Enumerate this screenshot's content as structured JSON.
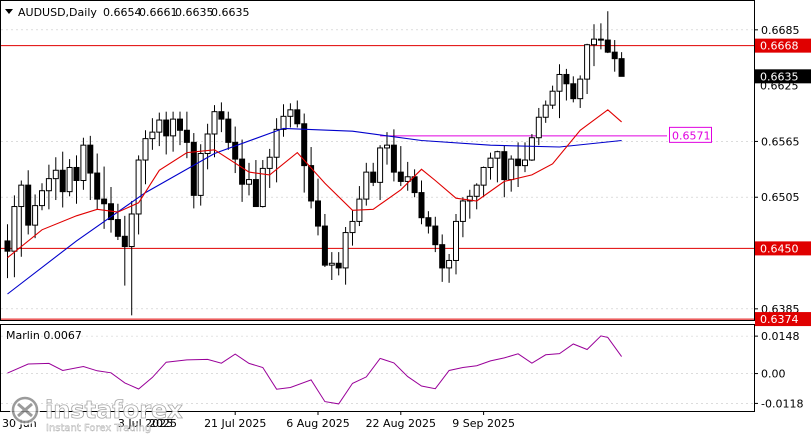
{
  "header": {
    "symbol_label": "AUDUSD,Daily",
    "ohlc": [
      "0.6654",
      "0.6661",
      "0.6635",
      "0.6635"
    ],
    "dropdown_icon": "triangle-down-icon"
  },
  "colors": {
    "bull": "#000000",
    "bear": "#000000",
    "level": "#e00000",
    "ma_fast": "#e00000",
    "ma_slow": "#0000cc",
    "marlin": "#990099",
    "target_line": "#e000e0",
    "grid": "#c8c8c8",
    "bid_tag_bg": "#000000"
  },
  "chart_data": [
    {
      "type": "candlestick",
      "symbol": "AUDUSD",
      "timeframe": "Daily",
      "y_axis_ticks": [
        "0.6685",
        "0.6565",
        "0.6505",
        "0.6385"
      ],
      "ylim": [
        0.6373,
        0.6716
      ],
      "x_axis_labels": [
        "3 Jul 2025",
        "21 Jul 2025",
        "6 Aug 2025",
        "22 Aug 2025",
        "9 Sep 2025"
      ],
      "x_axis_label_bars": [
        20,
        33,
        45,
        57,
        69
      ],
      "horizontal_levels": [
        {
          "value": 0.6668,
          "label": "0.6668"
        },
        {
          "value": 0.645,
          "label": "0.6450"
        },
        {
          "value": 0.6374,
          "label": "0.6374"
        }
      ],
      "target_line": {
        "value": 0.6571,
        "label": "0.6571",
        "from_bar": 54,
        "to_bar": 84
      },
      "price_tags": [
        {
          "value": 0.6635,
          "label": "0.6635"
        },
        {
          "value": 0.6625,
          "label": "0.6625"
        }
      ],
      "series": [
        {
          "kind": "ohlc",
          "open": [
            0.6458,
            0.6447,
            0.6495,
            0.6518,
            0.6475,
            0.6496,
            0.6512,
            0.6525,
            0.6534,
            0.6511,
            0.6537,
            0.6523,
            0.6561,
            0.6531,
            0.6503,
            0.6498,
            0.6481,
            0.6463,
            0.6452,
            0.6487,
            0.6545,
            0.6568,
            0.6575,
            0.6588,
            0.6571,
            0.6589,
            0.6577,
            0.6564,
            0.6507,
            0.6552,
            0.6573,
            0.6597,
            0.6589,
            0.6564,
            0.6546,
            0.6519,
            0.6524,
            0.6495,
            0.6536,
            0.6548,
            0.6578,
            0.6592,
            0.6599,
            0.6584,
            0.6539,
            0.6501,
            0.6474,
            0.6432,
            0.6434,
            0.6429,
            0.6467,
            0.6479,
            0.6503,
            0.6532,
            0.6521,
            0.6558,
            0.6561,
            0.6532,
            0.6522,
            0.6527,
            0.651,
            0.6483,
            0.6474,
            0.6454,
            0.6429,
            0.6437,
            0.6479,
            0.6501,
            0.6506,
            0.6518,
            0.6537,
            0.6547,
            0.6554,
            0.6524,
            0.6546,
            0.6539,
            0.6545,
            0.6569,
            0.6591,
            0.6604,
            0.6619,
            0.6637,
            0.6627,
            0.6611,
            0.6632,
            0.6669,
            0.6675,
            0.6674,
            0.6661,
            0.6654
          ],
          "high": [
            0.6476,
            0.6507,
            0.6523,
            0.6534,
            0.6508,
            0.652,
            0.654,
            0.6548,
            0.6554,
            0.6546,
            0.655,
            0.6569,
            0.6571,
            0.6552,
            0.6538,
            0.6516,
            0.6498,
            0.6485,
            0.6501,
            0.655,
            0.6577,
            0.659,
            0.6596,
            0.6597,
            0.6597,
            0.6597,
            0.6597,
            0.6574,
            0.6562,
            0.6584,
            0.6604,
            0.6607,
            0.6597,
            0.6581,
            0.6567,
            0.6542,
            0.6545,
            0.6545,
            0.6557,
            0.659,
            0.6605,
            0.6606,
            0.6609,
            0.6595,
            0.6559,
            0.6525,
            0.6487,
            0.6446,
            0.6446,
            0.6473,
            0.6491,
            0.6517,
            0.6542,
            0.6542,
            0.6561,
            0.6575,
            0.6578,
            0.656,
            0.6543,
            0.6535,
            0.6523,
            0.649,
            0.6484,
            0.6465,
            0.6444,
            0.6487,
            0.6505,
            0.6513,
            0.652,
            0.6538,
            0.6553,
            0.6555,
            0.6561,
            0.655,
            0.6564,
            0.6564,
            0.6573,
            0.6601,
            0.6609,
            0.6625,
            0.6648,
            0.6643,
            0.6635,
            0.6636,
            0.667,
            0.6691,
            0.6692,
            0.6705,
            0.6674,
            0.6661
          ],
          "low": [
            0.6418,
            0.6419,
            0.6441,
            0.6465,
            0.6461,
            0.6491,
            0.6492,
            0.6502,
            0.6494,
            0.6506,
            0.6498,
            0.6513,
            0.6502,
            0.6492,
            0.6471,
            0.6467,
            0.6459,
            0.641,
            0.6378,
            0.6465,
            0.6519,
            0.6556,
            0.656,
            0.6551,
            0.6554,
            0.6561,
            0.6547,
            0.6493,
            0.6496,
            0.6535,
            0.6548,
            0.6575,
            0.6556,
            0.6531,
            0.65,
            0.6507,
            0.6497,
            0.6494,
            0.6515,
            0.6521,
            0.657,
            0.658,
            0.658,
            0.651,
            0.6493,
            0.6464,
            0.643,
            0.6416,
            0.6421,
            0.6411,
            0.6453,
            0.6474,
            0.6496,
            0.6517,
            0.6502,
            0.654,
            0.6522,
            0.6517,
            0.6512,
            0.6505,
            0.6476,
            0.6466,
            0.6446,
            0.6414,
            0.6413,
            0.6422,
            0.6462,
            0.6482,
            0.6492,
            0.6505,
            0.6524,
            0.6521,
            0.6505,
            0.6511,
            0.6516,
            0.6532,
            0.6544,
            0.6561,
            0.6585,
            0.66,
            0.659,
            0.6609,
            0.6607,
            0.6601,
            0.6616,
            0.6646,
            0.6664,
            0.666,
            0.664,
            0.6635
          ],
          "close": [
            0.6447,
            0.6495,
            0.6518,
            0.6475,
            0.6496,
            0.6512,
            0.6525,
            0.6534,
            0.6511,
            0.6537,
            0.6523,
            0.6561,
            0.6531,
            0.6503,
            0.6498,
            0.6481,
            0.6463,
            0.6452,
            0.6487,
            0.6545,
            0.6568,
            0.6575,
            0.6588,
            0.6571,
            0.6589,
            0.6577,
            0.6564,
            0.6507,
            0.6552,
            0.6573,
            0.6597,
            0.6589,
            0.6564,
            0.6546,
            0.6519,
            0.6524,
            0.6495,
            0.6536,
            0.6548,
            0.6578,
            0.6592,
            0.6599,
            0.6584,
            0.6539,
            0.6501,
            0.6474,
            0.6432,
            0.6434,
            0.6429,
            0.6467,
            0.6479,
            0.6503,
            0.6532,
            0.6521,
            0.6558,
            0.6561,
            0.6532,
            0.6522,
            0.6527,
            0.651,
            0.6483,
            0.6474,
            0.6454,
            0.6429,
            0.6437,
            0.6479,
            0.6501,
            0.6506,
            0.6518,
            0.6537,
            0.6547,
            0.6554,
            0.6524,
            0.6546,
            0.6539,
            0.6545,
            0.6569,
            0.6591,
            0.6604,
            0.6619,
            0.6637,
            0.6627,
            0.6611,
            0.6632,
            0.6669,
            0.6675,
            0.6674,
            0.6661,
            0.6654,
            0.6635
          ]
        },
        {
          "kind": "line",
          "color_key": "ma_slow",
          "x": [
            0,
            10,
            20,
            30,
            40,
            50,
            60,
            70,
            80,
            89
          ],
          "values": [
            0.6401,
            0.6458,
            0.651,
            0.6552,
            0.6579,
            0.6576,
            0.6566,
            0.6561,
            0.6559,
            0.6566
          ]
        },
        {
          "kind": "line",
          "color_key": "ma_fast",
          "x": [
            0,
            5,
            10,
            13,
            16,
            19,
            22,
            26,
            30,
            35,
            38,
            42,
            46,
            50,
            53,
            57,
            60,
            62,
            65,
            68,
            72,
            76,
            79,
            83,
            87,
            89
          ],
          "values": [
            0.644,
            0.647,
            0.6485,
            0.6492,
            0.6489,
            0.6499,
            0.6534,
            0.6553,
            0.6556,
            0.6532,
            0.6529,
            0.6553,
            0.652,
            0.6491,
            0.6492,
            0.6513,
            0.6535,
            0.6523,
            0.6504,
            0.6501,
            0.6522,
            0.6529,
            0.6541,
            0.6577,
            0.6599,
            0.6586
          ]
        }
      ]
    },
    {
      "type": "line",
      "title": "Marlin 0.0067",
      "y_axis_ticks": [
        "0.0148",
        "0.00",
        "-0.0118"
      ],
      "ylim": [
        -0.0148,
        0.0192
      ],
      "series": [
        {
          "name": "Marlin",
          "color_key": "marlin",
          "x": [
            0,
            3,
            6,
            8,
            11,
            13,
            15,
            17,
            19,
            21,
            23,
            26,
            29,
            31,
            33,
            35,
            37,
            39,
            41,
            44,
            46,
            48,
            50,
            52,
            54,
            56,
            58,
            60,
            62,
            64,
            66,
            68,
            70,
            72,
            74,
            76,
            78,
            80,
            82,
            84,
            86,
            87,
            89
          ],
          "values": [
            0.0002,
            0.0038,
            0.004,
            0.0012,
            0.0028,
            0.0011,
            0.0003,
            -0.0037,
            -0.0061,
            -0.0015,
            0.0045,
            0.0054,
            0.0056,
            0.0041,
            0.0077,
            0.004,
            0.0024,
            -0.0062,
            -0.0055,
            -0.0025,
            -0.0111,
            -0.012,
            -0.0039,
            -0.0013,
            0.006,
            0.0042,
            -0.0012,
            -0.0049,
            -0.006,
            0.0012,
            0.0024,
            0.0031,
            0.005,
            0.0062,
            0.0078,
            0.0041,
            0.0074,
            0.0079,
            0.0117,
            0.0095,
            0.0149,
            0.0143,
            0.0067
          ]
        }
      ]
    }
  ],
  "indicator": {
    "title": "Marlin 0.0067"
  },
  "watermark": {
    "brand": "instaforex",
    "tagline": "Instant Forex Trading",
    "icon": "instaforex-logo-icon"
  },
  "x_axis_fragment": "3 Jul 2025",
  "x_axis_partial_left": "30 Jun",
  "x_axis_partial_right": "2025"
}
